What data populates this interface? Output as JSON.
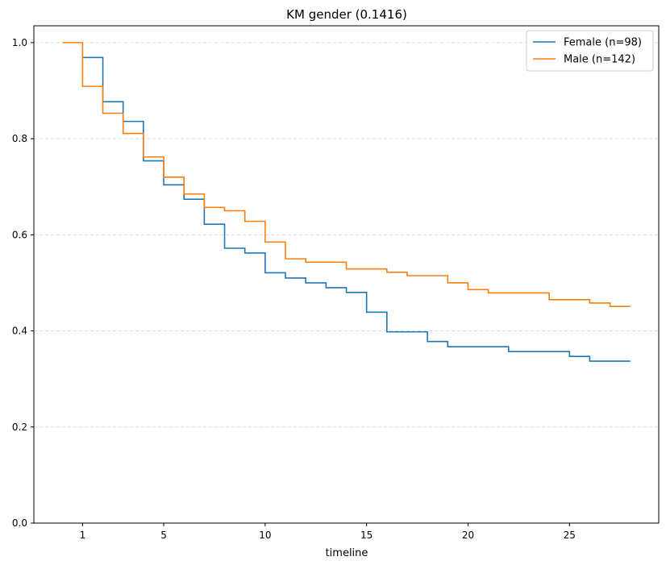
{
  "chart_data": {
    "type": "line",
    "title": "KM gender (0.1416)",
    "xlabel": "timeline",
    "ylabel": "",
    "xlim": [
      -1.4,
      29.4
    ],
    "ylim": [
      0,
      1.035
    ],
    "xticks": [
      1,
      5,
      10,
      15,
      20,
      25
    ],
    "yticks": [
      0.0,
      0.2,
      0.4,
      0.6,
      0.8,
      1.0
    ],
    "ytick_labels": [
      "0.0",
      "0.2",
      "0.4",
      "0.6",
      "0.8",
      "1.0"
    ],
    "grid": "y-dashed",
    "legend_position": "top-right",
    "step": "post",
    "series": [
      {
        "name": "Female (n=98)",
        "color": "#1f77b4",
        "x": [
          1,
          2,
          3,
          4,
          5,
          6,
          7,
          8,
          9,
          10,
          11,
          12,
          13,
          14,
          15,
          16,
          17,
          18,
          19,
          20,
          21,
          22,
          23,
          24,
          25,
          26,
          27,
          28
        ],
        "y": [
          0.969,
          0.877,
          0.836,
          0.754,
          0.704,
          0.674,
          0.622,
          0.572,
          0.562,
          0.521,
          0.51,
          0.5,
          0.49,
          0.48,
          0.439,
          0.398,
          0.398,
          0.378,
          0.367,
          0.367,
          0.367,
          0.357,
          0.357,
          0.357,
          0.347,
          0.337,
          0.337,
          0.337
        ]
      },
      {
        "name": "Male (n=142)",
        "color": "#ff7f0e",
        "x": [
          0,
          1,
          2,
          3,
          4,
          5,
          6,
          7,
          8,
          9,
          10,
          11,
          12,
          13,
          14,
          15,
          16,
          17,
          18,
          19,
          20,
          21,
          22,
          23,
          24,
          25,
          26,
          27,
          28
        ],
        "y": [
          1.0,
          0.909,
          0.853,
          0.811,
          0.762,
          0.72,
          0.685,
          0.657,
          0.65,
          0.628,
          0.585,
          0.55,
          0.543,
          0.543,
          0.529,
          0.529,
          0.522,
          0.515,
          0.515,
          0.5,
          0.486,
          0.479,
          0.479,
          0.479,
          0.465,
          0.465,
          0.458,
          0.451,
          0.451
        ]
      }
    ]
  }
}
